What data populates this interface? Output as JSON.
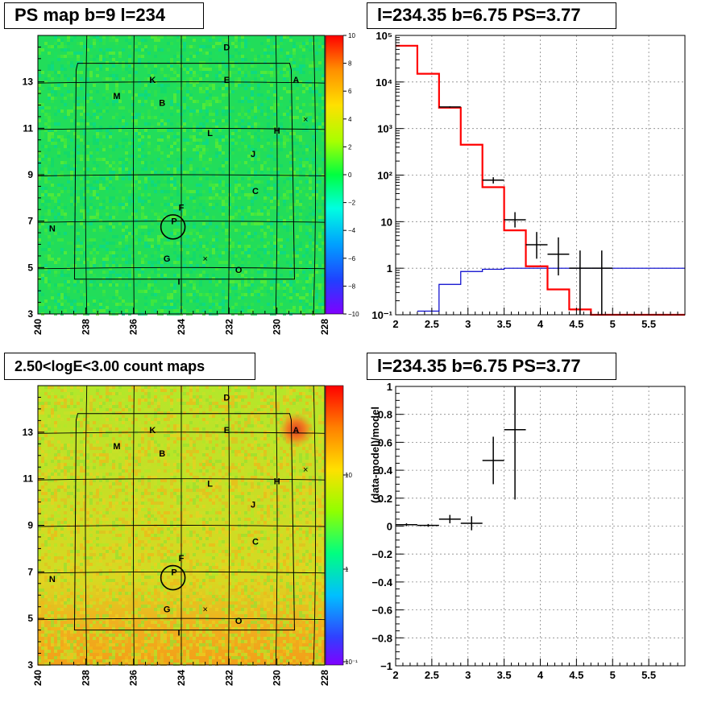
{
  "panels": {
    "tl_title": "PS map b=9 l=234",
    "tr_title": "l=234.35 b=6.75 PS=3.77",
    "bl_title": "2.50<logE<3.00 count maps",
    "br_title": "l=234.35 b=6.75 PS=3.77"
  },
  "colors": {
    "map_bg_top": "#22dd5a",
    "map_bg_bottom": "#22dd5a",
    "count_bg_top": "#b5e62a",
    "count_bg_bottom": "#f2a018",
    "data_line": "#000000",
    "model_line": "#ff0000",
    "blue_line": "#0000cc"
  },
  "chart_data": [
    {
      "type": "heatmap",
      "title": "PS map b=9 l=234",
      "x_ticks": [
        "240",
        "238",
        "236",
        "234",
        "232",
        "230",
        "228"
      ],
      "y_ticks": [
        "3",
        "5",
        "7",
        "9",
        "11",
        "13"
      ],
      "xlim": [
        240,
        228
      ],
      "ylim": [
        3,
        15
      ],
      "colorbar": {
        "ticks": [
          "10",
          "8",
          "6",
          "4",
          "2",
          "0",
          "−2",
          "−4",
          "−6",
          "−8",
          "−10"
        ],
        "range": [
          -10,
          10
        ]
      },
      "sources": [
        {
          "label": "D",
          "l": 232.1,
          "b": 14.5
        },
        {
          "label": "K",
          "l": 235.2,
          "b": 13.1
        },
        {
          "label": "E",
          "l": 232.1,
          "b": 13.1
        },
        {
          "label": "A",
          "l": 229.2,
          "b": 13.1
        },
        {
          "label": "M",
          "l": 236.7,
          "b": 12.4
        },
        {
          "label": "B",
          "l": 234.8,
          "b": 12.1
        },
        {
          "label": "L",
          "l": 232.8,
          "b": 10.8
        },
        {
          "label": "H",
          "l": 230.0,
          "b": 10.9
        },
        {
          "label": "J",
          "l": 231.0,
          "b": 9.9
        },
        {
          "label": "C",
          "l": 230.9,
          "b": 8.3
        },
        {
          "label": "F",
          "l": 234.0,
          "b": 7.6
        },
        {
          "label": "P",
          "l": 234.3,
          "b": 7.0
        },
        {
          "label": "N",
          "l": 239.4,
          "b": 6.7
        },
        {
          "label": "G",
          "l": 234.6,
          "b": 5.4
        },
        {
          "label": "O",
          "l": 231.6,
          "b": 4.9
        },
        {
          "label": "I",
          "l": 234.1,
          "b": 4.4
        }
      ],
      "crosses": [
        {
          "l": 228.8,
          "b": 11.4
        },
        {
          "l": 233.0,
          "b": 5.4
        }
      ],
      "circle": {
        "l": 234.35,
        "b": 6.75
      }
    },
    {
      "type": "line",
      "title": "l=234.35 b=6.75 PS=3.77",
      "y_scale": "log",
      "xlim": [
        2,
        6
      ],
      "ylim": [
        0.1,
        100000
      ],
      "x_ticks": [
        "2",
        "2.5",
        "3",
        "3.5",
        "4",
        "4.5",
        "5",
        "5.5"
      ],
      "y_ticks": [
        "10⁻¹",
        "1",
        "10",
        "10²",
        "10³",
        "10⁴",
        "10⁵"
      ],
      "series": [
        {
          "kind": "model_step",
          "edges": [
            2,
            2.3,
            2.6,
            2.9,
            3.2,
            3.5,
            3.8,
            4.1,
            4.4,
            4.7,
            5.0,
            6.0
          ],
          "values": [
            60000,
            15000,
            2800,
            450,
            55,
            6.5,
            1.1,
            0.35,
            0.13,
            0.1,
            0.1
          ]
        },
        {
          "kind": "blue_step",
          "edges": [
            2.3,
            2.6,
            2.9,
            3.2,
            3.5,
            3.8,
            4.1,
            4.4,
            4.7,
            5.0,
            6.0
          ],
          "values": [
            0.12,
            0.45,
            0.85,
            0.95,
            1.0,
            1.0,
            1.0,
            1.0,
            1.0,
            1.0
          ]
        },
        {
          "kind": "data_points",
          "points": [
            {
              "x": 2.75,
              "y": 2900,
              "xerr": 0.15,
              "ylo": 2800,
              "yhi": 3000
            },
            {
              "x": 3.35,
              "y": 78,
              "xerr": 0.15,
              "ylo": 66,
              "yhi": 90
            },
            {
              "x": 3.65,
              "y": 11,
              "xerr": 0.15,
              "ylo": 7.5,
              "yhi": 16
            },
            {
              "x": 3.95,
              "y": 3.2,
              "xerr": 0.15,
              "ylo": 1.6,
              "yhi": 6
            },
            {
              "x": 4.25,
              "y": 2.0,
              "xerr": 0.15,
              "ylo": 0.7,
              "yhi": 4.6
            },
            {
              "x": 4.55,
              "y": 1.0,
              "xerr": 0.15,
              "ylo": 0.1,
              "yhi": 2.4
            },
            {
              "x": 4.85,
              "y": 1.0,
              "xerr": 0.15,
              "ylo": 0.1,
              "yhi": 2.4
            }
          ]
        }
      ]
    },
    {
      "type": "heatmap",
      "title": "2.50<logE<3.00 count maps",
      "x_ticks": [
        "240",
        "238",
        "236",
        "234",
        "232",
        "230",
        "228"
      ],
      "y_ticks": [
        "3",
        "5",
        "7",
        "9",
        "11",
        "13"
      ],
      "xlim": [
        240,
        228
      ],
      "ylim": [
        3,
        15
      ],
      "colorbar": {
        "ticks": [
          "10",
          "1",
          "10⁻¹"
        ],
        "scale": "log"
      },
      "sources_same_as_panel": 1,
      "hotspot": {
        "label": "A",
        "l": 229.2,
        "b": 13.1
      }
    },
    {
      "type": "scatter",
      "title": "l=234.35 b=6.75 PS=3.77",
      "ylabel": "(data-model)/model",
      "xlim": [
        2,
        6
      ],
      "ylim": [
        -1,
        1
      ],
      "x_ticks": [
        "2",
        "2.5",
        "3",
        "3.5",
        "4",
        "4.5",
        "5",
        "5.5"
      ],
      "y_ticks": [
        "−1",
        "−0.8",
        "−0.6",
        "−0.4",
        "−0.2",
        "0",
        "0.2",
        "0.4",
        "0.6",
        "0.8",
        "1"
      ],
      "points": [
        {
          "x": 2.15,
          "y": 0.01,
          "xerr": 0.15,
          "yerr": 0.01
        },
        {
          "x": 2.45,
          "y": 0.005,
          "xerr": 0.15,
          "yerr": 0.01
        },
        {
          "x": 2.75,
          "y": 0.05,
          "xerr": 0.15,
          "yerr": 0.03
        },
        {
          "x": 3.05,
          "y": 0.02,
          "xerr": 0.15,
          "yerr": 0.05
        },
        {
          "x": 3.35,
          "y": 0.47,
          "xerr": 0.15,
          "yerr": 0.17
        },
        {
          "x": 3.65,
          "y": 0.69,
          "xerr": 0.15,
          "yerr": 0.5
        }
      ]
    }
  ]
}
